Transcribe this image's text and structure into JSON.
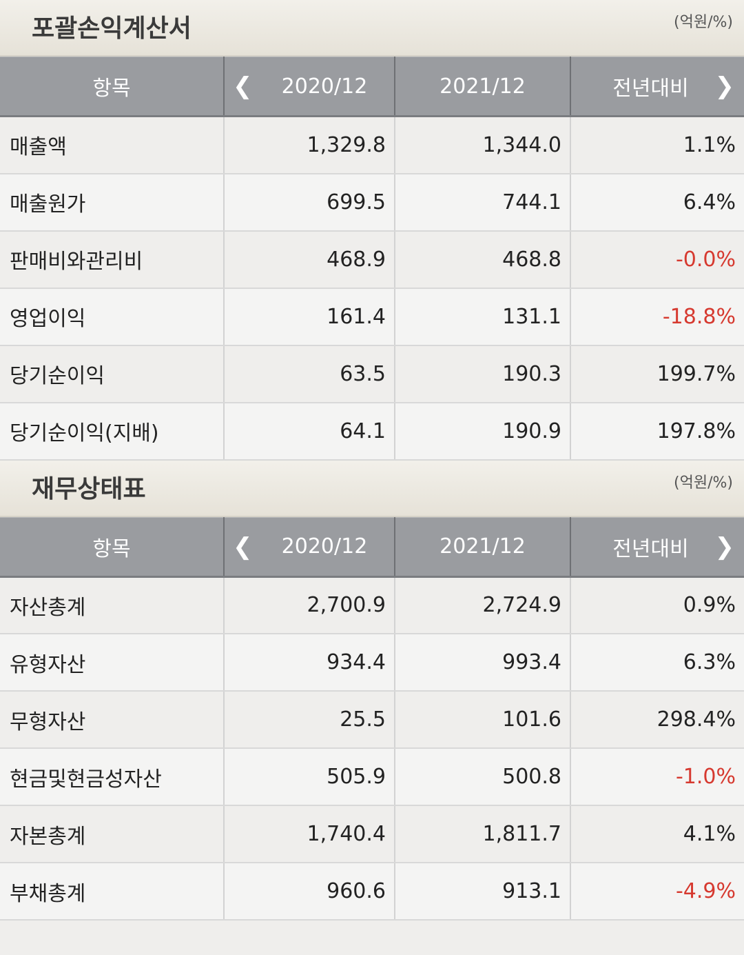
{
  "income": {
    "title": "포괄손익계산서",
    "unit": "(억원/%)",
    "headers": {
      "item": "항목",
      "prev_period": "2020/12",
      "curr_period": "2021/12",
      "yoy": "전년대비"
    },
    "rows": [
      {
        "label": "매출액",
        "prev": "1,329.8",
        "curr": "1,344.0",
        "yoy": "1.1%"
      },
      {
        "label": "매출원가",
        "prev": "699.5",
        "curr": "744.1",
        "yoy": "6.4%"
      },
      {
        "label": "판매비와관리비",
        "prev": "468.9",
        "curr": "468.8",
        "yoy": "-0.0%"
      },
      {
        "label": "영업이익",
        "prev": "161.4",
        "curr": "131.1",
        "yoy": "-18.8%"
      },
      {
        "label": "당기순이익",
        "prev": "63.5",
        "curr": "190.3",
        "yoy": "199.7%"
      },
      {
        "label": "당기순이익(지배)",
        "prev": "64.1",
        "curr": "190.9",
        "yoy": "197.8%"
      }
    ]
  },
  "balance": {
    "title": "재무상태표",
    "unit": "(억원/%)",
    "headers": {
      "item": "항목",
      "prev_period": "2020/12",
      "curr_period": "2021/12",
      "yoy": "전년대비"
    },
    "rows": [
      {
        "label": "자산총계",
        "prev": "2,700.9",
        "curr": "2,724.9",
        "yoy": "0.9%"
      },
      {
        "label": "유형자산",
        "prev": "934.4",
        "curr": "993.4",
        "yoy": "6.3%"
      },
      {
        "label": "무형자산",
        "prev": "25.5",
        "curr": "101.6",
        "yoy": "298.4%"
      },
      {
        "label": "현금및현금성자산",
        "prev": "505.9",
        "curr": "500.8",
        "yoy": "-1.0%"
      },
      {
        "label": "자본총계",
        "prev": "1,740.4",
        "curr": "1,811.7",
        "yoy": "4.1%"
      },
      {
        "label": "부채총계",
        "prev": "960.6",
        "curr": "913.1",
        "yoy": "-4.9%"
      }
    ]
  },
  "icons": {
    "prev": "chevron-left-icon",
    "next": "chevron-right-icon"
  },
  "colors": {
    "negative": "#d6392f",
    "header_bg": "#9a9ca0"
  }
}
